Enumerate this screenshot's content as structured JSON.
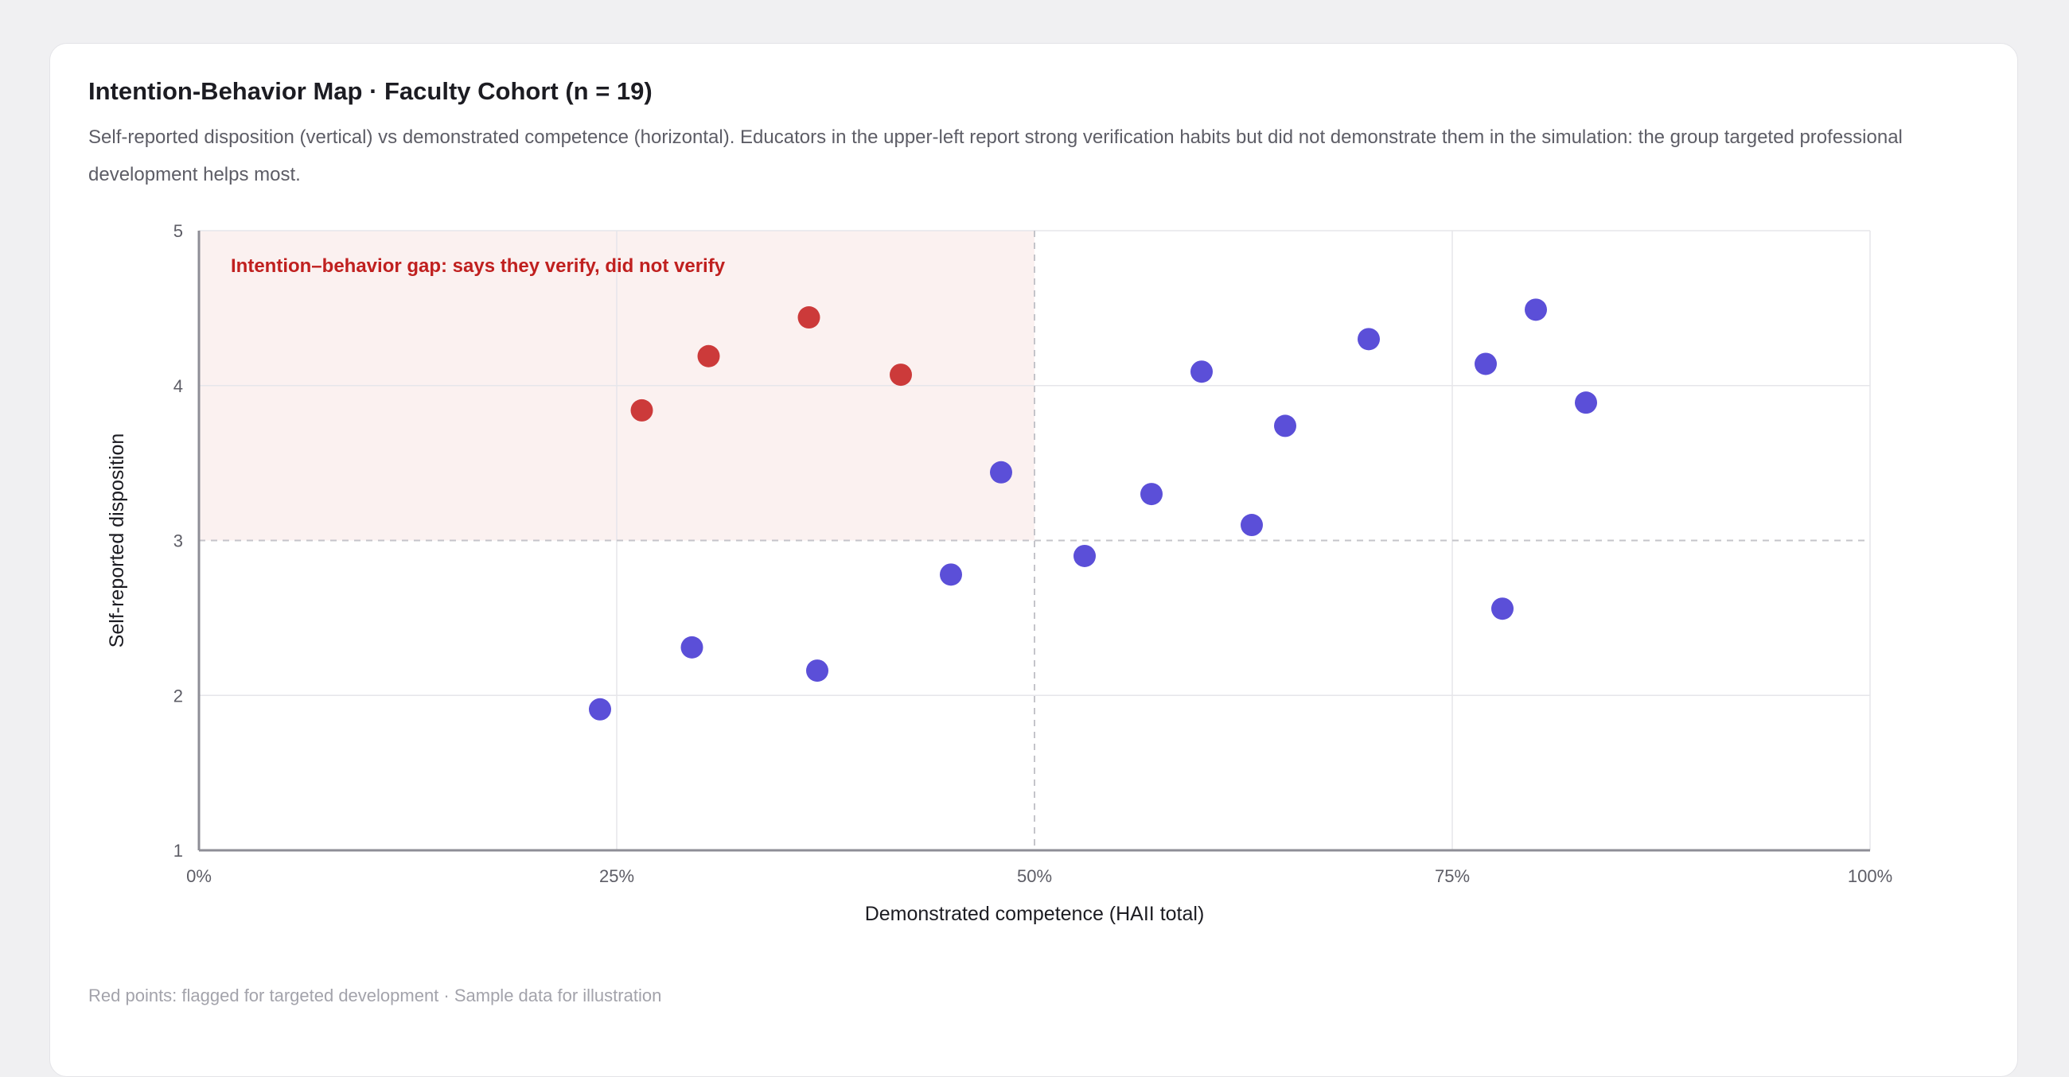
{
  "title": "Intention-Behavior Map · Faculty Cohort (n = 19)",
  "subtitle": "Self-reported disposition (vertical) vs demonstrated competence (horizontal). Educators in the upper-left report strong verification habits but did not demonstrate them in the simulation: the group targeted professional development helps most.",
  "footnote": "Red points: flagged for targeted development · Sample data for illustration",
  "colors": {
    "flagged": "#cc3a3a",
    "normal": "#5b4fd8",
    "zone": "#fbf1f0",
    "zone_text": "#c0201f"
  },
  "chart_data": {
    "type": "scatter",
    "xlabel": "Demonstrated competence (HAII total)",
    "ylabel": "Self-reported disposition",
    "xlim": [
      0,
      100
    ],
    "ylim": [
      1,
      5
    ],
    "x_ticks": [
      0,
      25,
      50,
      75,
      100
    ],
    "x_tick_labels": [
      "0%",
      "25%",
      "50%",
      "75%",
      "100%"
    ],
    "y_ticks": [
      1,
      2,
      3,
      4,
      5
    ],
    "y_tick_labels": [
      "1",
      "2",
      "3",
      "4",
      "5"
    ],
    "threshold_x": 50,
    "threshold_y": 3,
    "grid": true,
    "zone_label": "Intention–behavior gap: says they verify, did not verify",
    "points": [
      {
        "x": 26.5,
        "y": 3.84,
        "flagged": true
      },
      {
        "x": 30.5,
        "y": 4.19,
        "flagged": true
      },
      {
        "x": 36.5,
        "y": 4.44,
        "flagged": true
      },
      {
        "x": 42,
        "y": 4.07,
        "flagged": true
      },
      {
        "x": 24,
        "y": 1.91,
        "flagged": false
      },
      {
        "x": 29.5,
        "y": 2.31,
        "flagged": false
      },
      {
        "x": 37,
        "y": 2.16,
        "flagged": false
      },
      {
        "x": 45,
        "y": 2.78,
        "flagged": false
      },
      {
        "x": 48,
        "y": 3.44,
        "flagged": false
      },
      {
        "x": 53,
        "y": 2.9,
        "flagged": false
      },
      {
        "x": 57,
        "y": 3.3,
        "flagged": false
      },
      {
        "x": 60,
        "y": 4.09,
        "flagged": false
      },
      {
        "x": 63,
        "y": 3.1,
        "flagged": false
      },
      {
        "x": 65,
        "y": 3.74,
        "flagged": false
      },
      {
        "x": 70,
        "y": 4.3,
        "flagged": false
      },
      {
        "x": 77,
        "y": 4.14,
        "flagged": false
      },
      {
        "x": 78,
        "y": 2.56,
        "flagged": false
      },
      {
        "x": 80,
        "y": 4.49,
        "flagged": false
      },
      {
        "x": 83,
        "y": 3.89,
        "flagged": false
      }
    ]
  }
}
